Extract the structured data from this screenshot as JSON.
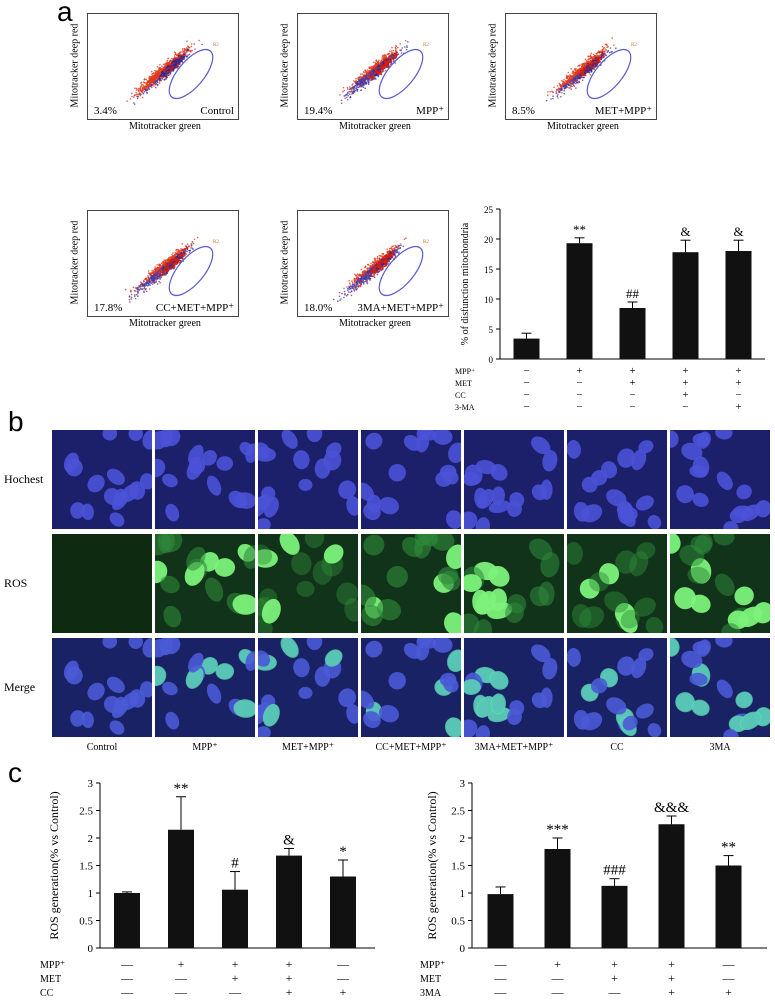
{
  "panels": {
    "a": "a",
    "b": "b",
    "c": "c"
  },
  "flow_plots": [
    {
      "pct": "3.4%",
      "label": "Control",
      "red_shift": 0
    },
    {
      "pct": "19.4%",
      "label": "MPP⁺",
      "red_shift": 1
    },
    {
      "pct": "8.5%",
      "label": "MET+MPP⁺",
      "red_shift": 0.5
    },
    {
      "pct": "17.8%",
      "label": "CC+MET+MPP⁺",
      "red_shift": 0.9
    },
    {
      "pct": "18.0%",
      "label": "3MA+MET+MPP⁺",
      "red_shift": 0.9
    }
  ],
  "flow_axes": {
    "xlabel": "Mitotracker green",
    "ylabel": "Mitotracker deep red",
    "gate": "R2"
  },
  "microscopy": {
    "rows": [
      "Hochest",
      "ROS",
      "Merge"
    ],
    "columns": [
      "Control",
      "MPP⁺",
      "MET+MPP⁺",
      "CC+MET+MPP⁺",
      "3MA+MET+MPP⁺",
      "CC",
      "3MA"
    ]
  },
  "chart_data": [
    {
      "type": "bar",
      "ylabel": "% of disfunction mitochondria",
      "ylim": [
        0,
        25
      ],
      "yticks": [
        0,
        5,
        10,
        15,
        20,
        25
      ],
      "values": [
        3.4,
        19.3,
        8.5,
        17.8,
        18.0
      ],
      "errors": [
        0.9,
        0.9,
        1.0,
        2.0,
        1.8
      ],
      "annotations": [
        "",
        "**",
        "##",
        "&",
        "&"
      ],
      "treatment_rows": [
        {
          "name": "MPP⁺",
          "signs": [
            "−",
            "+",
            "+",
            "+",
            "+"
          ]
        },
        {
          "name": "MET",
          "signs": [
            "−",
            "−",
            "+",
            "+",
            "+"
          ]
        },
        {
          "name": "CC",
          "signs": [
            "−",
            "−",
            "−",
            "+",
            "−"
          ]
        },
        {
          "name": "3-MA",
          "signs": [
            "−",
            "−",
            "−",
            "−",
            "+"
          ]
        }
      ]
    },
    {
      "type": "bar",
      "ylabel": "ROS generation(% vs Control)",
      "ylim": [
        0,
        3
      ],
      "yticks": [
        0,
        0.5,
        1,
        1.5,
        2,
        2.5,
        3
      ],
      "ytick_labels": [
        "0",
        "0.5",
        "1",
        "1.5",
        "2",
        "2.5",
        "3"
      ],
      "values": [
        1.0,
        2.15,
        1.06,
        1.68,
        1.3
      ],
      "errors": [
        0.02,
        0.6,
        0.33,
        0.13,
        0.3
      ],
      "annotations": [
        "",
        "**",
        "#",
        "&",
        "*"
      ],
      "treatment_rows": [
        {
          "name": "MPP⁺",
          "signs": [
            "—",
            "+",
            "+",
            "+",
            "—"
          ]
        },
        {
          "name": "MET",
          "signs": [
            "—",
            "—",
            "+",
            "+",
            "—"
          ]
        },
        {
          "name": "CC",
          "signs": [
            "—",
            "—",
            "—",
            "+",
            "+"
          ]
        }
      ]
    },
    {
      "type": "bar",
      "ylabel": "ROS generation(% vs Control)",
      "ylim": [
        0,
        3
      ],
      "yticks": [
        0,
        0.5,
        1,
        1.5,
        2,
        2.5,
        3
      ],
      "ytick_labels": [
        "0",
        "0.5",
        "1",
        "1.5",
        "2",
        "2.5",
        "3"
      ],
      "values": [
        0.98,
        1.8,
        1.13,
        2.25,
        1.5
      ],
      "errors": [
        0.13,
        0.2,
        0.13,
        0.15,
        0.18
      ],
      "annotations": [
        "",
        "***",
        "###",
        "&&&",
        "**"
      ],
      "treatment_rows": [
        {
          "name": "MPP⁺",
          "signs": [
            "—",
            "+",
            "+",
            "+",
            "—"
          ]
        },
        {
          "name": "MET",
          "signs": [
            "—",
            "—",
            "+",
            "+",
            "—"
          ]
        },
        {
          "name": "3MA",
          "signs": [
            "—",
            "—",
            "—",
            "+",
            "+"
          ]
        }
      ]
    }
  ]
}
